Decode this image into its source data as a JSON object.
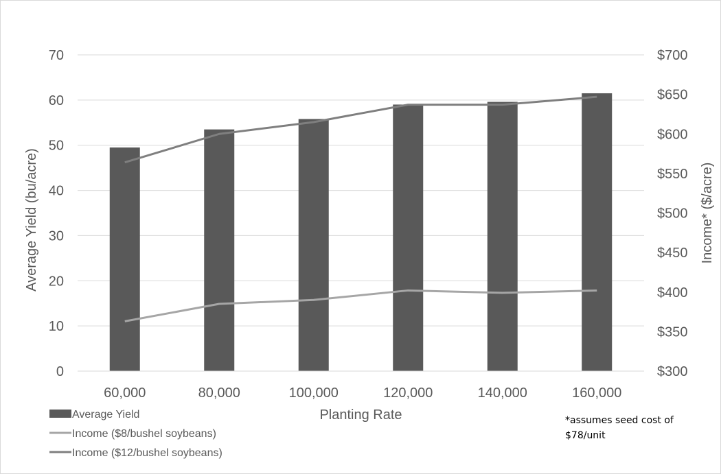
{
  "chart_data": {
    "type": "bar",
    "categories": [
      "60,000",
      "80,000",
      "100,000",
      "120,000",
      "140,000",
      "160,000"
    ],
    "xlabel": "Planting Rate",
    "ylabel": "Average Yield (bu/acre)",
    "y2label": "Income* ($/acre)",
    "ylim": [
      0,
      70
    ],
    "yticks": [
      "0",
      "10",
      "20",
      "30",
      "40",
      "50",
      "60",
      "70"
    ],
    "y2lim": [
      300,
      700
    ],
    "y2ticks": [
      "$300",
      "$350",
      "$400",
      "$450",
      "$500",
      "$550",
      "$600",
      "$650",
      "$700"
    ],
    "grid": true,
    "legend_position": "bottom-left",
    "series": [
      {
        "name": "Average Yield",
        "kind": "bar",
        "axis": "left",
        "color": "#595959",
        "values": [
          49.5,
          53.5,
          55.8,
          59.0,
          59.6,
          61.5
        ]
      },
      {
        "name": "Income ($8/bushel soybeans)",
        "kind": "line",
        "axis": "right",
        "color": "#a6a6a6",
        "values": [
          363,
          385,
          390,
          402,
          399,
          402
        ]
      },
      {
        "name": "Income ($12/bushel soybeans)",
        "kind": "line",
        "axis": "right",
        "color": "#7f7f7f",
        "values": [
          564,
          600,
          615,
          637,
          637,
          647
        ]
      }
    ]
  },
  "note": {
    "line1": "*assumes seed cost of",
    "line2": "$78/unit"
  }
}
